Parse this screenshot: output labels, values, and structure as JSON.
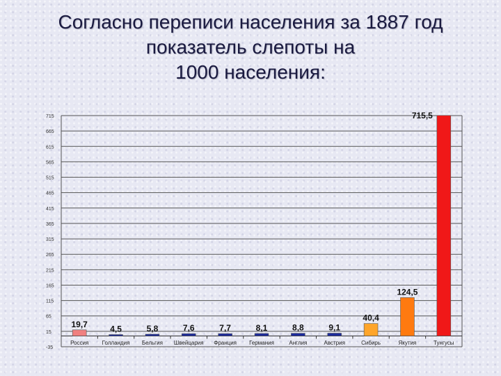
{
  "title_lines": [
    "Согласно переписи населения за 1887 год",
    "показатель слепоты на",
    "1000 населения:"
  ],
  "chart_data": {
    "type": "bar",
    "categories": [
      "Россия",
      "Голландия",
      "Бельгия",
      "Швейцария",
      "Франция",
      "Германия",
      "Англия",
      "Австрия",
      "Сибирь",
      "Якутия",
      "Тунгусы"
    ],
    "values": [
      19.7,
      4.5,
      5.8,
      7.6,
      7.7,
      8.1,
      8.8,
      9.1,
      40.4,
      124.5,
      715.5
    ],
    "value_labels": [
      "19,7",
      "4,5",
      "5,8",
      "7,6",
      "7,7",
      "8,1",
      "8,8",
      "9,1",
      "40,4",
      "124,5",
      "715,5"
    ],
    "colors": [
      "#f08080",
      "#1c2a9c",
      "#1c2a9c",
      "#1c2a9c",
      "#1c2a9c",
      "#1c2a9c",
      "#1c2a9c",
      "#1c2a9c",
      "#ffa52a",
      "#ff7a10",
      "#f01818"
    ],
    "ylim": [
      -35,
      715
    ],
    "yticks": [
      -35,
      15,
      65,
      115,
      165,
      215,
      265,
      315,
      365,
      415,
      465,
      515,
      565,
      615,
      665,
      715
    ],
    "ytick_labels": [
      "-35",
      "15",
      "65",
      "115",
      "165",
      "215",
      "265",
      "315",
      "365",
      "415",
      "465",
      "515",
      "565",
      "615",
      "665",
      "715"
    ],
    "grid": true
  }
}
